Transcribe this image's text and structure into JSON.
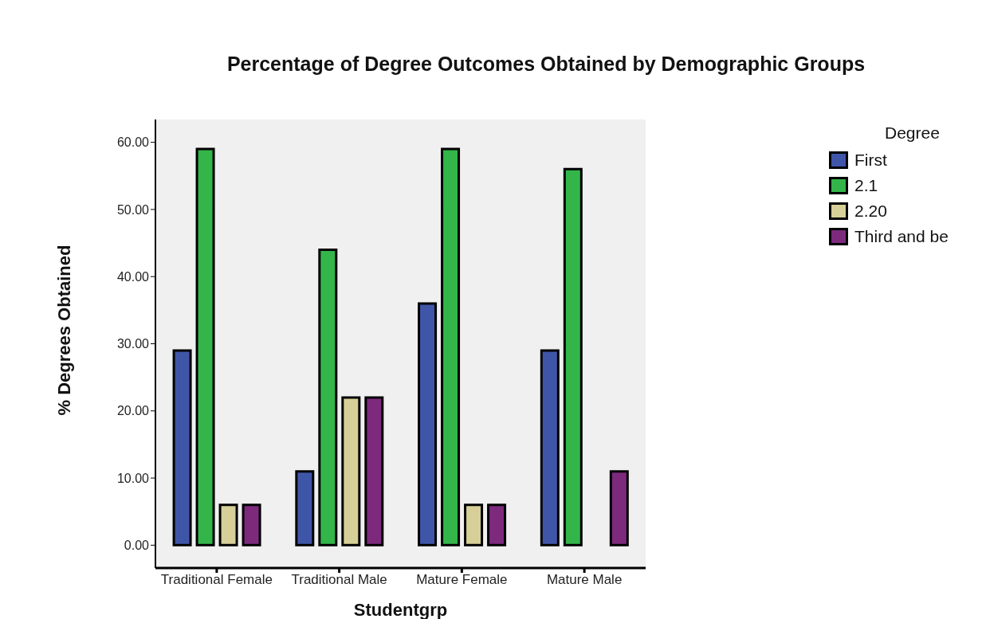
{
  "chart_data": {
    "type": "bar",
    "title": "Percentage of Degree Outcomes Obtained by Demographic Groups",
    "xlabel": "Studentgrp",
    "ylabel": "% Degrees Obtained",
    "legend_title": "Degree",
    "categories": [
      "Traditional Female",
      "Traditional Male",
      "Mature Female",
      "Mature Male"
    ],
    "series": [
      {
        "name": "First",
        "color": "#3f56a8",
        "values": [
          29,
          11,
          36,
          29
        ]
      },
      {
        "name": "2.1",
        "color": "#33b54a",
        "values": [
          59,
          44,
          59,
          56
        ]
      },
      {
        "name": "2.20",
        "color": "#d6cf98",
        "values": [
          6,
          22,
          6,
          0
        ]
      },
      {
        "name": "Third and be",
        "color": "#7d2a7d",
        "values": [
          6,
          22,
          6,
          11
        ]
      }
    ],
    "ylim": [
      -3.4,
      63.4
    ],
    "yticks": [
      {
        "value": 0,
        "label": "0.00"
      },
      {
        "value": 10,
        "label": "10.00"
      },
      {
        "value": 20,
        "label": "20.00"
      },
      {
        "value": 30,
        "label": "30.00"
      },
      {
        "value": 40,
        "label": "40.00"
      },
      {
        "value": 50,
        "label": "50.00"
      },
      {
        "value": 60,
        "label": "60.00"
      }
    ],
    "grid": false,
    "legend": "top right"
  }
}
